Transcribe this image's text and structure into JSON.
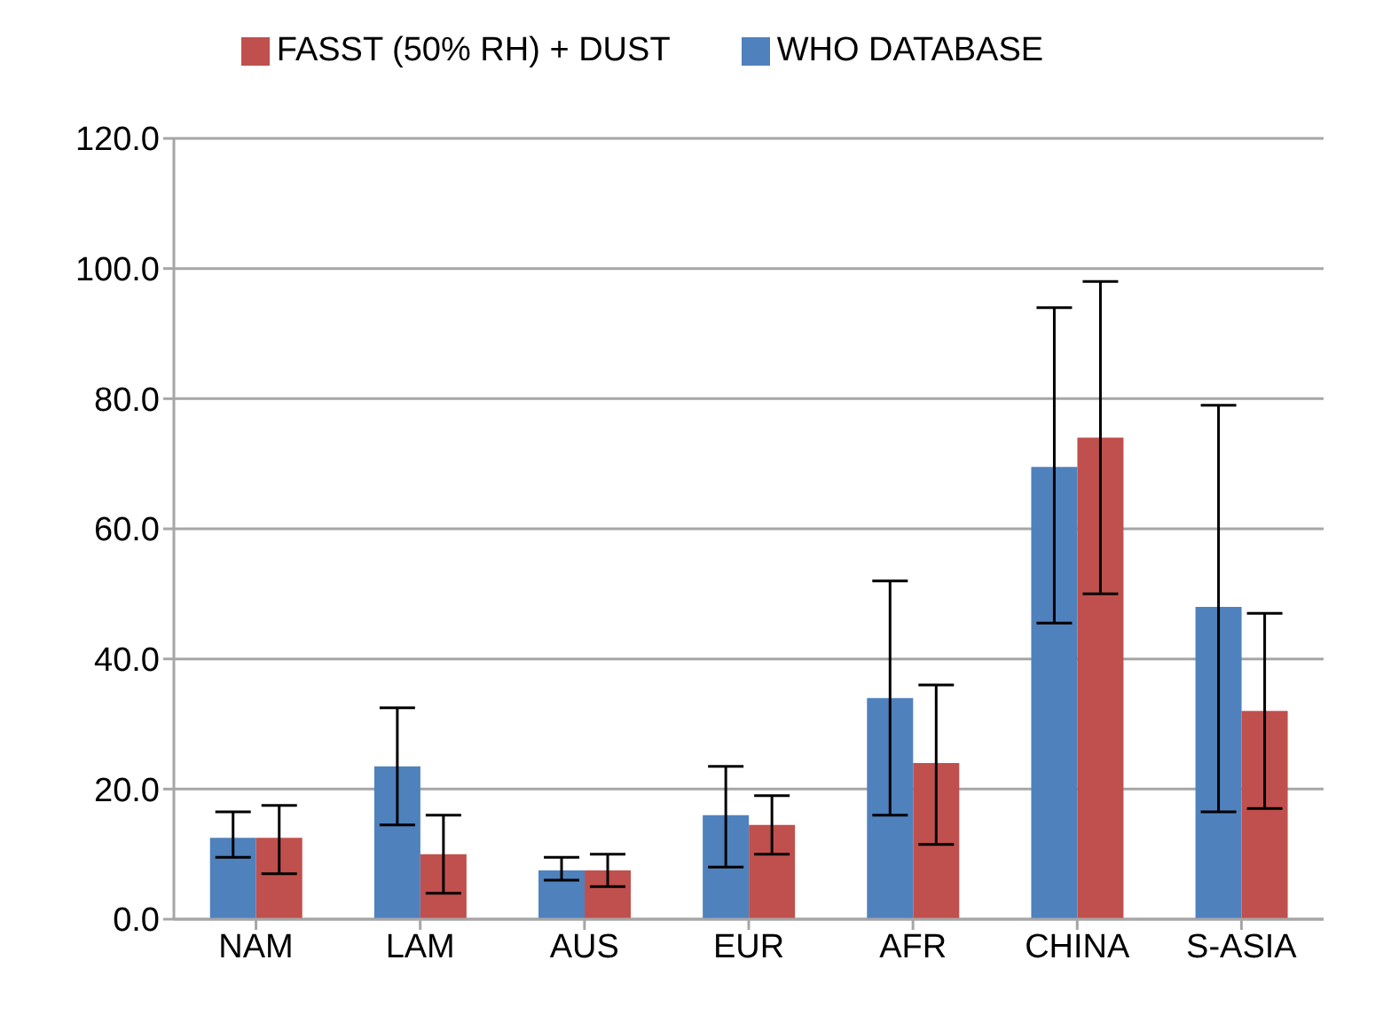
{
  "chart_data": {
    "type": "bar",
    "categories": [
      "NAM",
      "LAM",
      "AUS",
      "EUR",
      "AFR",
      "CHINA",
      "S-ASIA"
    ],
    "series": [
      {
        "name": "WHO DATABASE",
        "color": "#4f81bd",
        "values": [
          12.5,
          23.5,
          7.5,
          16,
          34,
          69.5,
          48
        ],
        "errors": [
          [
            9.5,
            16.5
          ],
          [
            14.5,
            32.5
          ],
          [
            6,
            9.5
          ],
          [
            8,
            23.5
          ],
          [
            16,
            52
          ],
          [
            45.5,
            94
          ],
          [
            16.5,
            79
          ]
        ]
      },
      {
        "name": "FASST (50% RH) + DUST",
        "color": "#c0504d",
        "values": [
          12.5,
          10,
          7.5,
          14.5,
          24,
          74,
          32
        ],
        "errors": [
          [
            7,
            17.5
          ],
          [
            4,
            16
          ],
          [
            5,
            10
          ],
          [
            10,
            19
          ],
          [
            11.5,
            36
          ],
          [
            50,
            98
          ],
          [
            17,
            47
          ]
        ]
      }
    ],
    "ylim": [
      0,
      120
    ],
    "yticks": [
      {
        "value": 0,
        "label": "0.0"
      },
      {
        "value": 20,
        "label": "20.0"
      },
      {
        "value": 40,
        "label": "40.0"
      },
      {
        "value": 60,
        "label": "60.0"
      },
      {
        "value": 80,
        "label": "80.0"
      },
      {
        "value": 100,
        "label": "100.0"
      },
      {
        "value": 120,
        "label": "120.0"
      }
    ],
    "grid": "y",
    "legend": "top"
  }
}
